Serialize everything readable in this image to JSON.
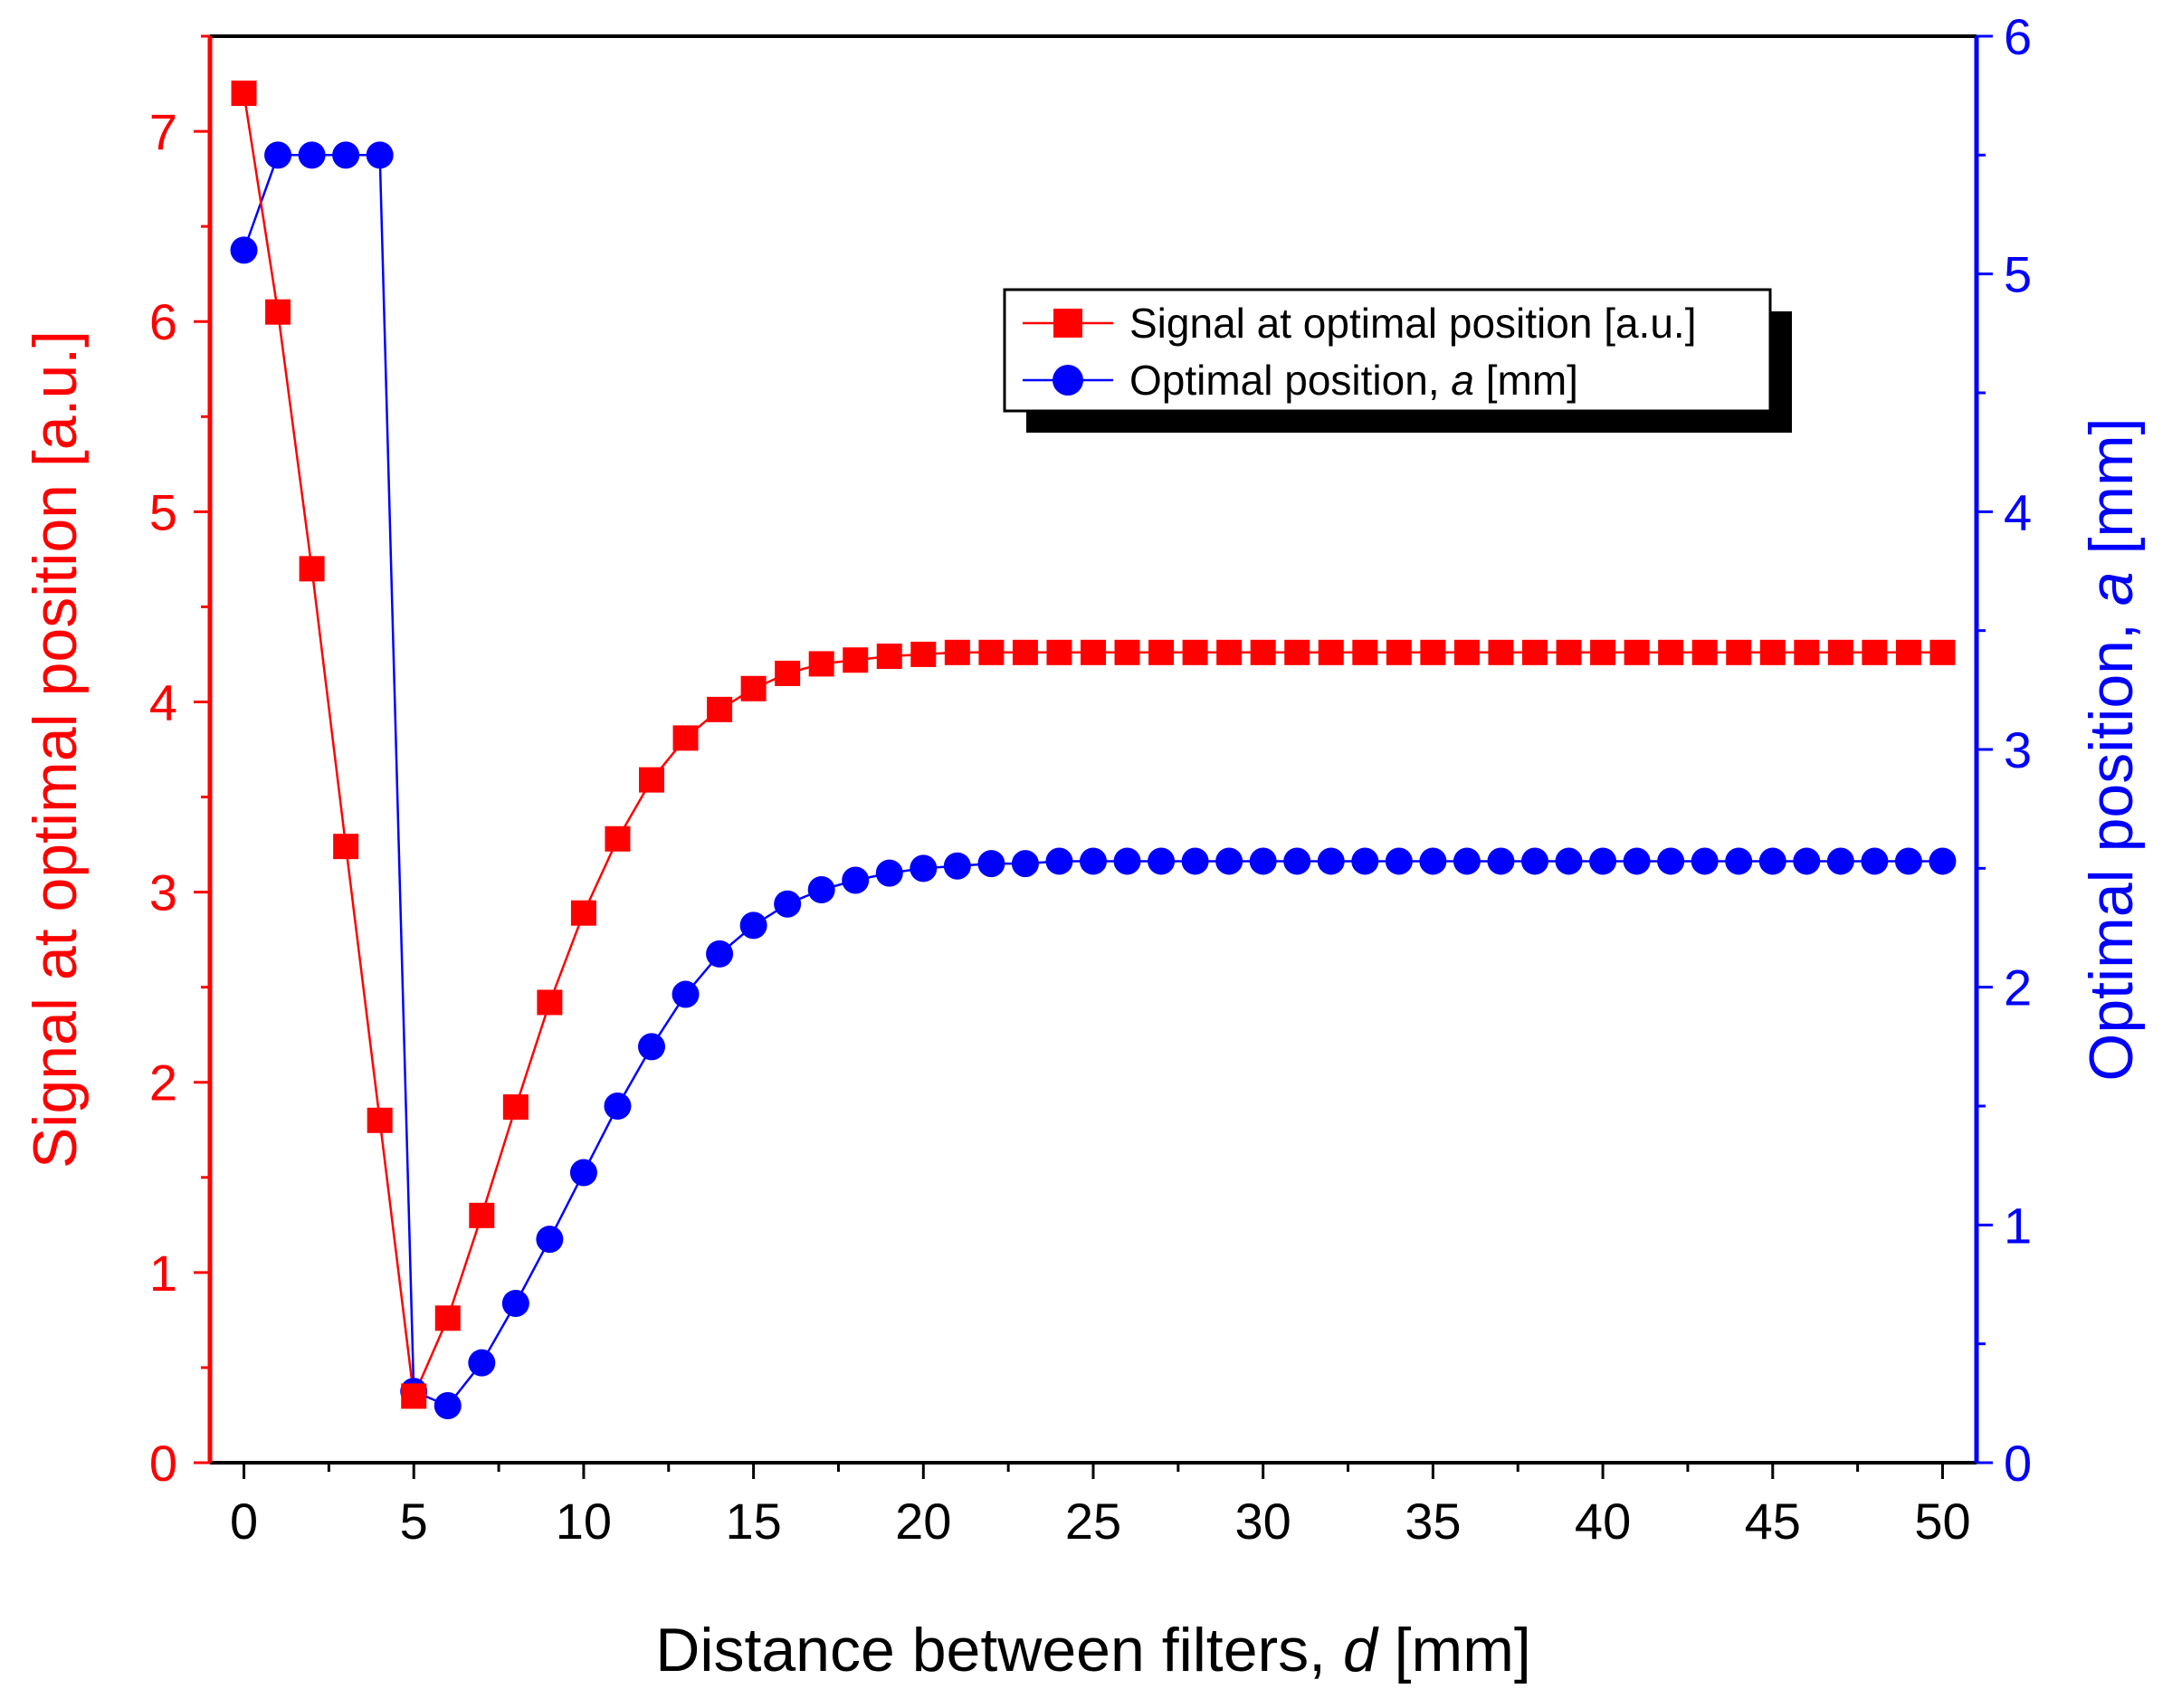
{
  "chart_data": {
    "type": "line",
    "xlabel_prefix": "Distance between filters, ",
    "xlabel_var": "d",
    "xlabel_suffix": " [mm]",
    "ylabel_left": "Signal at optimal position [a.u.]",
    "ylabel_right_prefix": "Optimal position, ",
    "ylabel_right_var": "a",
    "ylabel_right_suffix": " [mm]",
    "xlim": [
      -1,
      51
    ],
    "ylim_left": [
      0,
      7.5
    ],
    "ylim_right": [
      0,
      6
    ],
    "x_ticks": [
      0,
      5,
      10,
      15,
      20,
      25,
      30,
      35,
      40,
      45,
      50
    ],
    "y_left_ticks": [
      0,
      1,
      2,
      3,
      4,
      5,
      6,
      7
    ],
    "y_right_ticks": [
      0,
      1,
      2,
      3,
      4,
      5,
      6
    ],
    "x": [
      0,
      1,
      2,
      3,
      4,
      5,
      6,
      7,
      8,
      9,
      10,
      11,
      12,
      13,
      14,
      15,
      16,
      17,
      18,
      19,
      20,
      21,
      22,
      23,
      24,
      25,
      26,
      27,
      28,
      29,
      30,
      31,
      32,
      33,
      34,
      35,
      36,
      37,
      38,
      39,
      40,
      41,
      42,
      43,
      44,
      45,
      46,
      47,
      48,
      49,
      50
    ],
    "series": [
      {
        "name": "Signal at optimal position [a.u.]",
        "axis": "left",
        "marker": "square",
        "color": "#ff0000",
        "values": [
          7.2,
          6.05,
          4.7,
          3.24,
          1.8,
          0.35,
          0.76,
          1.3,
          1.87,
          2.42,
          2.89,
          3.28,
          3.59,
          3.81,
          3.96,
          4.07,
          4.15,
          4.2,
          4.22,
          4.24,
          4.25,
          4.26,
          4.26,
          4.26,
          4.26,
          4.26,
          4.26,
          4.26,
          4.26,
          4.26,
          4.26,
          4.26,
          4.26,
          4.26,
          4.26,
          4.26,
          4.26,
          4.26,
          4.26,
          4.26,
          4.26,
          4.26,
          4.26,
          4.26,
          4.26,
          4.26,
          4.26,
          4.26,
          4.26,
          4.26,
          4.26
        ]
      },
      {
        "name": "Optimal position, a [mm]",
        "axis": "right",
        "marker": "circle",
        "color": "#0000ff",
        "values": [
          5.1,
          5.5,
          5.5,
          5.5,
          5.5,
          0.3,
          0.24,
          0.42,
          0.67,
          0.94,
          1.22,
          1.5,
          1.75,
          1.97,
          2.14,
          2.26,
          2.35,
          2.41,
          2.45,
          2.48,
          2.5,
          2.51,
          2.52,
          2.52,
          2.53,
          2.53,
          2.53,
          2.53,
          2.53,
          2.53,
          2.53,
          2.53,
          2.53,
          2.53,
          2.53,
          2.53,
          2.53,
          2.53,
          2.53,
          2.53,
          2.53,
          2.53,
          2.53,
          2.53,
          2.53,
          2.53,
          2.53,
          2.53,
          2.53,
          2.53,
          2.53
        ]
      }
    ],
    "legend": {
      "entries": [
        "Signal at optimal position [a.u.]",
        "Optimal position, a [mm]"
      ],
      "entry2_prefix": "Optimal position, ",
      "entry2_var": "a",
      "entry2_suffix": " [mm]",
      "position": "top-right"
    },
    "colors": {
      "left_axis": "#ff0000",
      "right_axis": "#0000ff",
      "frame": "#000000"
    }
  }
}
